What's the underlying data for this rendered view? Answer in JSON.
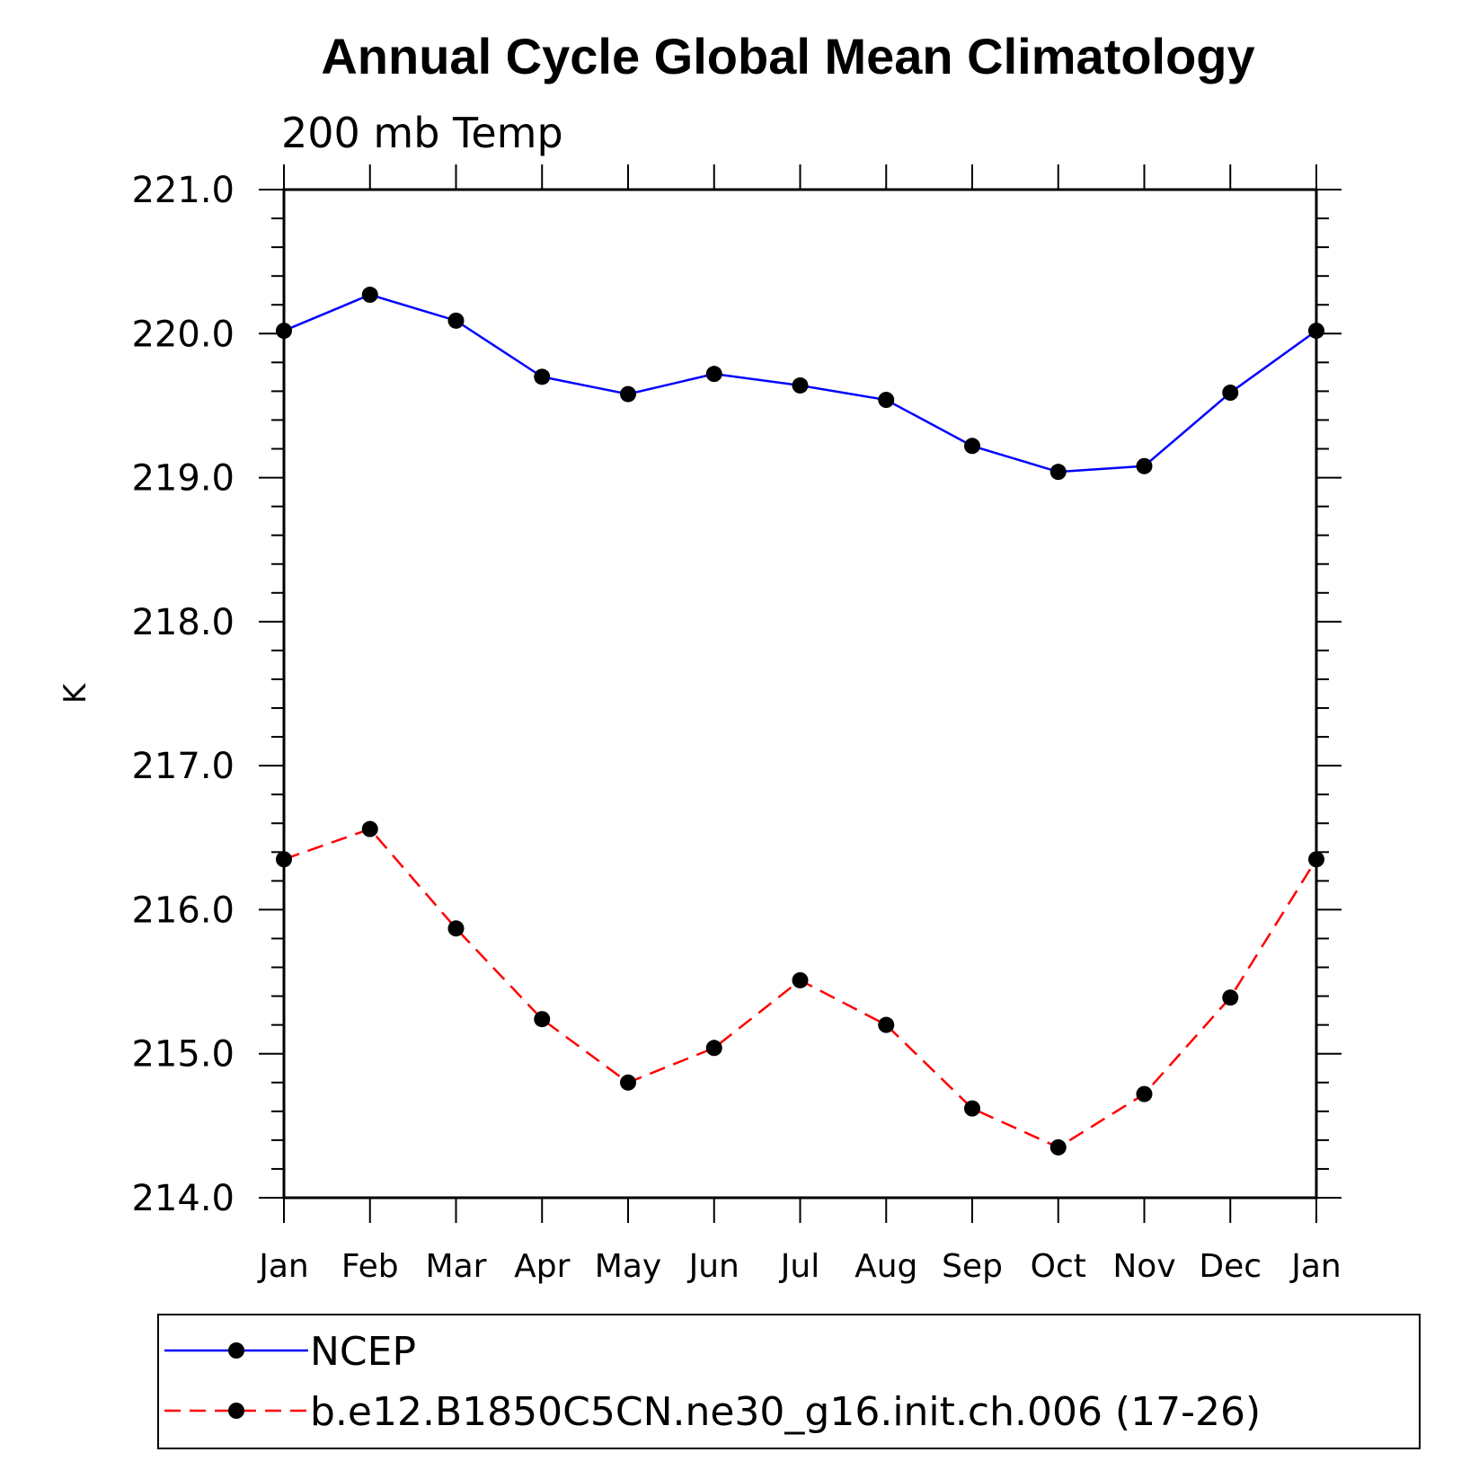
{
  "chart_data": {
    "type": "line",
    "title": "Annual Cycle Global Mean Climatology",
    "subtitle": "200 mb Temp",
    "xlabel": "",
    "ylabel": "K",
    "categories": [
      "Jan",
      "Feb",
      "Mar",
      "Apr",
      "May",
      "Jun",
      "Jul",
      "Aug",
      "Sep",
      "Oct",
      "Nov",
      "Dec",
      "Jan"
    ],
    "ylim": [
      214.0,
      221.0
    ],
    "yticks": [
      "214.0",
      "215.0",
      "216.0",
      "217.0",
      "218.0",
      "219.0",
      "220.0",
      "221.0"
    ],
    "grid": false,
    "legend_position": "bottom",
    "series": [
      {
        "name": "NCEP",
        "color": "#0000ff",
        "dash": "solid",
        "marker": "filled-circle",
        "values": [
          220.02,
          220.27,
          220.09,
          219.7,
          219.58,
          219.72,
          219.64,
          219.54,
          219.22,
          219.04,
          219.08,
          219.59,
          220.02
        ]
      },
      {
        "name": "b.e12.B1850C5CN.ne30_g16.init.ch.006 (17-26)",
        "color": "#ff0000",
        "dash": "dashed",
        "marker": "filled-circle",
        "values": [
          216.35,
          216.56,
          215.87,
          215.24,
          214.8,
          215.04,
          215.51,
          215.2,
          214.62,
          214.35,
          214.72,
          215.39,
          216.35
        ]
      }
    ]
  }
}
